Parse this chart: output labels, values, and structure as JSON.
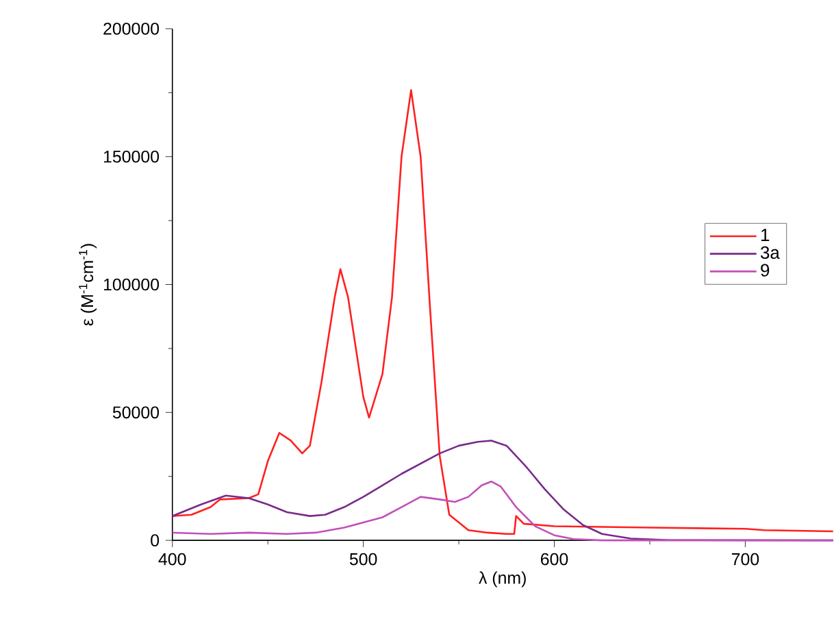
{
  "chart_data": {
    "type": "line",
    "xlabel": "λ (nm)",
    "ylabel": "ε (M$^{-1}$cm$^{-1}$)",
    "xlim": [
      400,
      746
    ],
    "ylim": [
      0,
      200000
    ],
    "xticks": [
      400,
      {
        "value": 450,
        "label": null
      },
      500,
      {
        "value": 550,
        "label": null
      },
      600,
      {
        "value": 650,
        "label": null
      },
      700
    ],
    "yticks": [
      0,
      {
        "value": 25000,
        "label": null
      },
      50000,
      {
        "value": 75000,
        "label": null
      },
      100000,
      {
        "value": 125000,
        "label": null
      },
      150000,
      {
        "value": 175000,
        "label": null
      },
      200000
    ],
    "legend": "right",
    "grid": false,
    "line_style": "solid",
    "marker": "none",
    "series": [
      {
        "name": "1",
        "color": "#ff2020",
        "x": [
          400,
          410,
          420,
          425,
          440,
          445,
          450,
          456,
          462,
          468,
          472,
          478,
          485,
          488,
          492,
          500,
          503,
          510,
          515,
          520,
          525,
          530,
          535,
          540,
          545,
          550,
          555,
          565,
          575,
          579,
          580,
          584,
          600,
          650,
          700,
          710,
          746
        ],
        "values": [
          9500,
          10000,
          13000,
          16000,
          16500,
          18000,
          31000,
          42000,
          39000,
          34000,
          37000,
          61500,
          95000,
          106000,
          95000,
          56000,
          48000,
          65000,
          95000,
          150000,
          176000,
          150000,
          90000,
          33000,
          10000,
          7000,
          4000,
          3000,
          2500,
          2500,
          9500,
          6500,
          5500,
          5000,
          4500,
          4000,
          3500
        ]
      },
      {
        "name": "3a",
        "color": "#7a2a8a",
        "x": [
          400,
          415,
          428,
          440,
          450,
          460,
          472,
          480,
          490,
          500,
          510,
          520,
          530,
          540,
          550,
          560,
          567,
          575,
          585,
          595,
          605,
          615,
          625,
          640,
          660,
          746
        ],
        "values": [
          9500,
          14000,
          17500,
          16500,
          14000,
          11000,
          9500,
          10000,
          13000,
          17000,
          21500,
          26000,
          30000,
          34000,
          37000,
          38500,
          39000,
          37000,
          29000,
          20000,
          12000,
          6000,
          2500,
          700,
          100,
          0
        ]
      },
      {
        "name": "9",
        "color": "#c050b8",
        "x": [
          400,
          420,
          440,
          460,
          475,
          490,
          500,
          510,
          520,
          530,
          540,
          548,
          555,
          562,
          567,
          572,
          580,
          590,
          600,
          610,
          625,
          746
        ],
        "values": [
          3000,
          2500,
          3000,
          2500,
          3000,
          5000,
          7000,
          9000,
          13000,
          17000,
          16000,
          15000,
          17000,
          21500,
          23000,
          21000,
          13000,
          5500,
          2000,
          500,
          0,
          0
        ]
      }
    ]
  }
}
